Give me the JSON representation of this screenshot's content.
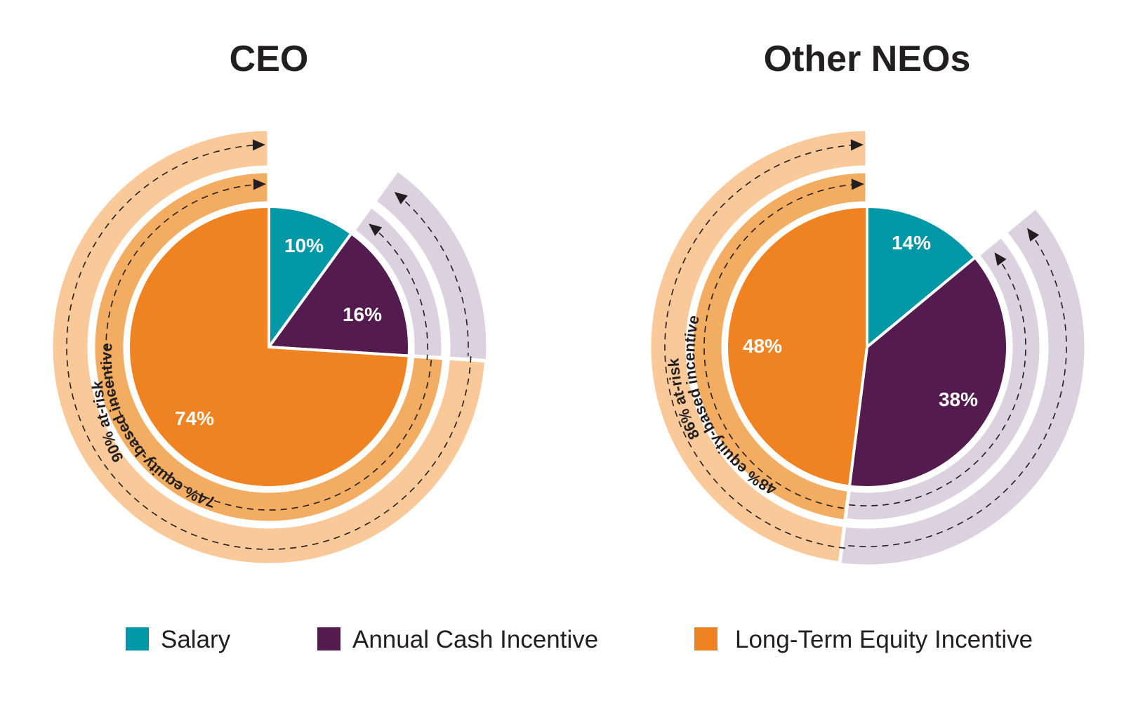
{
  "chart_data": [
    {
      "type": "pie",
      "title": "CEO",
      "categories": [
        "Salary",
        "Annual Cash Incentive",
        "Long-Term Equity Incentive"
      ],
      "values": [
        10,
        16,
        74
      ],
      "labels": [
        "10%",
        "16%",
        "74%"
      ],
      "at_risk_label": "90% at-risk",
      "equity_label": "74% equity-based incentive"
    },
    {
      "type": "pie",
      "title": "Other NEOs",
      "categories": [
        "Salary",
        "Annual Cash Incentive",
        "Long-Term Equity Incentive"
      ],
      "values": [
        14,
        38,
        48
      ],
      "labels": [
        "14%",
        "38%",
        "48%"
      ],
      "at_risk_label": "86% at-risk",
      "equity_label": "48% equity-based incentive"
    }
  ],
  "legend": [
    {
      "label": "Salary",
      "color": "#0097a7"
    },
    {
      "label": "Annual Cash Incentive",
      "color": "#541b4f"
    },
    {
      "label": "Long-Term Equity Incentive",
      "color": "#f08321"
    }
  ],
  "colors": {
    "salary": "#0097a7",
    "cash": "#541b4f",
    "equity": "#f08321",
    "equity_band": "#f3ad62",
    "at_risk_band": "#fac999",
    "cash_band": "#dcd2df",
    "arrow": "#231f20"
  }
}
